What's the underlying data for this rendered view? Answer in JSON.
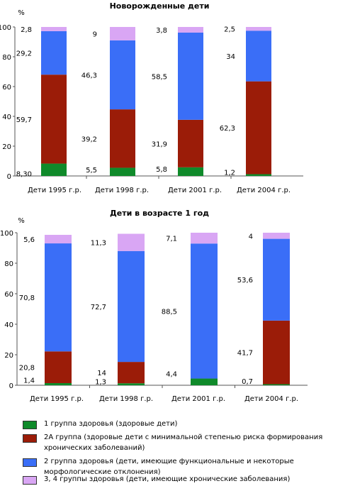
{
  "chart_data": [
    {
      "type": "bar",
      "stacked": true,
      "title": "Новорожденные дети",
      "ylabel": "%",
      "ylim": [
        0,
        100
      ],
      "yticks": [
        0,
        20,
        40,
        60,
        80,
        100
      ],
      "grid": false,
      "categories": [
        "Дети 1995 г.р.",
        "Дети 1998 г.р.",
        "Дети 2001 г.р.",
        "Дети 2004 г.р."
      ],
      "series": [
        {
          "name": "1 группа здоровья (здоровые дети)",
          "color": "#0f8a2a",
          "values": [
            8.3,
            5.5,
            5.8,
            1.2
          ],
          "labels": [
            "8,30",
            "5,5",
            "5,8",
            "1,2"
          ]
        },
        {
          "name": "2А группа (здоровые дети с минимальной степенью риска формирования хронических заболеваний)",
          "color": "#9b1c08",
          "values": [
            59.7,
            39.2,
            31.9,
            62.3
          ],
          "labels": [
            "59,7",
            "39,2",
            "31,9",
            "62,3"
          ]
        },
        {
          "name": "2 группа здоровья (дети, имеющие функциональные и некоторые морфологические отклонения)",
          "color": "#3a6ef7",
          "values": [
            29.2,
            46.3,
            58.5,
            34
          ],
          "labels": [
            "29,2",
            "46,3",
            "58,5",
            "34"
          ]
        },
        {
          "name": "3, 4 группы здоровья (дети, имеющие хронические заболевания)",
          "color": "#d9a6f4",
          "values": [
            2.8,
            9,
            3.8,
            2.5
          ],
          "labels": [
            "2,8",
            "9",
            "3,8",
            "2,5"
          ]
        }
      ]
    },
    {
      "type": "bar",
      "stacked": true,
      "title": "Дети в возрасте 1 год",
      "ylabel": "%",
      "ylim": [
        0,
        100
      ],
      "yticks": [
        0,
        20,
        40,
        60,
        80,
        100
      ],
      "grid": false,
      "categories": [
        "Дети 1995 г.р.",
        "Дети 1998 г.р.",
        "Дети 2001 г.р.",
        "Дети 2004 г.р."
      ],
      "series": [
        {
          "name": "1 группа здоровья (здоровые дети)",
          "color": "#0f8a2a",
          "values": [
            1.4,
            1.3,
            4.4,
            0.7
          ],
          "labels": [
            "1,4",
            "1,3",
            "4,4",
            "0,7"
          ]
        },
        {
          "name": "2А группа (здоровые дети с минимальной степенью риска формирования хронических заболеваний)",
          "color": "#9b1c08",
          "values": [
            20.8,
            14,
            0,
            41.7
          ],
          "labels": [
            "20,8",
            "14",
            "",
            "41,7"
          ]
        },
        {
          "name": "2 группа здоровья (дети, имеющие функциональные и некоторые морфологические отклонения)",
          "color": "#3a6ef7",
          "values": [
            70.8,
            72.7,
            88.5,
            53.6
          ],
          "labels": [
            "70,8",
            "72,7",
            "88,5",
            "53,6"
          ]
        },
        {
          "name": "3, 4 группы здоровья (дети, имеющие хронические заболевания)",
          "color": "#d9a6f4",
          "values": [
            5.6,
            11.3,
            7.1,
            4
          ],
          "labels": [
            "5,6",
            "11,3",
            "7,1",
            "4"
          ]
        }
      ]
    }
  ],
  "legend": [
    {
      "label": "1 группа здоровья (здоровые дети)",
      "color": "#0f8a2a"
    },
    {
      "label": "2А группа (здоровые дети с минимальной степенью риска формирования хронических заболеваний)",
      "color": "#9b1c08"
    },
    {
      "label": "2 группа здоровья (дети, имеющие функциональные и некоторые морфологические отклонения)",
      "color": "#3a6ef7"
    },
    {
      "label": "3, 4 группы здоровья (дети, имеющие хронические заболевания)",
      "color": "#d9a6f4"
    }
  ]
}
